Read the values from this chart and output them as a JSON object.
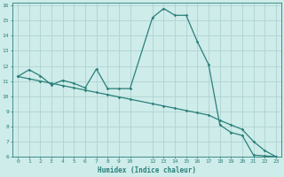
{
  "xlabel": "Humidex (Indice chaleur)",
  "background_color": "#ceecea",
  "grid_color": "#aed4d0",
  "line_color": "#2a7f7a",
  "xlim": [
    -0.5,
    23.5
  ],
  "ylim": [
    6,
    16.2
  ],
  "xticks": [
    0,
    1,
    2,
    3,
    4,
    5,
    6,
    7,
    8,
    9,
    10,
    12,
    13,
    14,
    15,
    16,
    17,
    18,
    19,
    20,
    21,
    22,
    23
  ],
  "yticks": [
    6,
    7,
    8,
    9,
    10,
    11,
    12,
    13,
    14,
    15,
    16
  ],
  "curve1_x": [
    0,
    1,
    2,
    3,
    4,
    5,
    6,
    7,
    8,
    9,
    10,
    12,
    13,
    14,
    15,
    16,
    17,
    18,
    19,
    20,
    21,
    22,
    23
  ],
  "curve1_y": [
    11.3,
    11.75,
    11.35,
    10.75,
    11.05,
    10.85,
    10.55,
    11.8,
    10.5,
    10.5,
    10.5,
    15.2,
    15.8,
    15.35,
    15.35,
    13.6,
    12.1,
    8.1,
    7.6,
    7.4,
    6.1,
    6.05,
    6.0
  ],
  "curve2_x": [
    0,
    1,
    2,
    3,
    4,
    5,
    6,
    7,
    8,
    9,
    10,
    12,
    13,
    14,
    15,
    16,
    17,
    18,
    19,
    20,
    21,
    22,
    23
  ],
  "curve2_y": [
    11.3,
    11.15,
    11.0,
    10.85,
    10.7,
    10.55,
    10.4,
    10.25,
    10.1,
    9.95,
    9.8,
    9.5,
    9.35,
    9.2,
    9.05,
    8.9,
    8.75,
    8.4,
    8.1,
    7.8,
    7.0,
    6.4,
    6.0
  ]
}
